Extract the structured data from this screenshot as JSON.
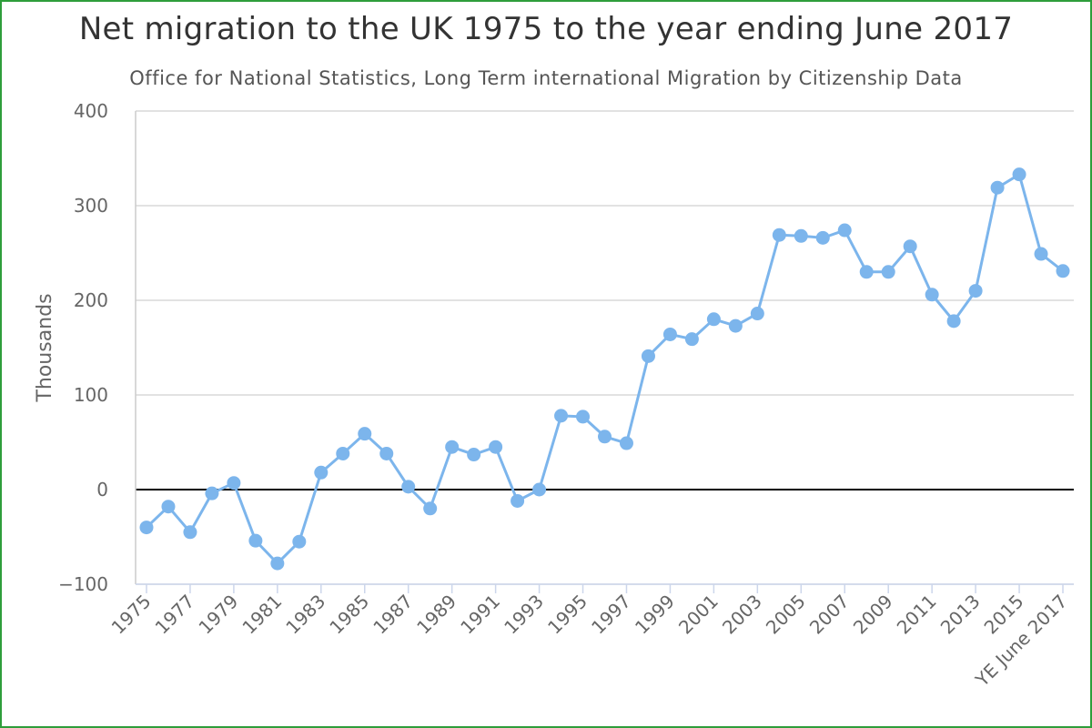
{
  "chart_data": {
    "type": "line",
    "title": "Net migration to the UK 1975 to the year ending June 2017",
    "subtitle": "Office for National Statistics, Long Term international Migration by Citizenship Data",
    "xlabel": "",
    "ylabel": "Thousands",
    "ylim": [
      -100,
      400
    ],
    "yticks": [
      -100,
      0,
      100,
      200,
      300,
      400
    ],
    "ytick_labels": [
      "−100",
      "0",
      "100",
      "200",
      "300",
      "400"
    ],
    "grid": true,
    "categories": [
      "1975",
      "1976",
      "1977",
      "1978",
      "1979",
      "1980",
      "1981",
      "1982",
      "1983",
      "1984",
      "1985",
      "1986",
      "1987",
      "1988",
      "1989",
      "1990",
      "1991",
      "1992",
      "1993",
      "1994",
      "1995",
      "1996",
      "1997",
      "1998",
      "1999",
      "2000",
      "2001",
      "2002",
      "2003",
      "2004",
      "2005",
      "2006",
      "2007",
      "2008",
      "2009",
      "2010",
      "2011",
      "2012",
      "2013",
      "2014",
      "2015",
      "2016",
      "YE June 2017"
    ],
    "xtick_labels": [
      "1975",
      "1977",
      "1979",
      "1981",
      "1983",
      "1985",
      "1987",
      "1989",
      "1991",
      "1993",
      "1995",
      "1997",
      "1999",
      "2001",
      "2003",
      "2005",
      "2007",
      "2009",
      "2011",
      "2013",
      "2015",
      "YE June 2017"
    ],
    "series": [
      {
        "name": "Net migration",
        "color": "#7cb5ec",
        "values": [
          -40,
          -18,
          -45,
          -4,
          7,
          -54,
          -78,
          -55,
          18,
          38,
          59,
          38,
          3,
          -20,
          45,
          37,
          45,
          -12,
          0,
          78,
          77,
          56,
          49,
          141,
          164,
          159,
          180,
          173,
          186,
          269,
          268,
          266,
          274,
          230,
          230,
          257,
          206,
          178,
          210,
          319,
          333,
          249,
          231
        ]
      }
    ],
    "zero_line_color": "#000000"
  }
}
